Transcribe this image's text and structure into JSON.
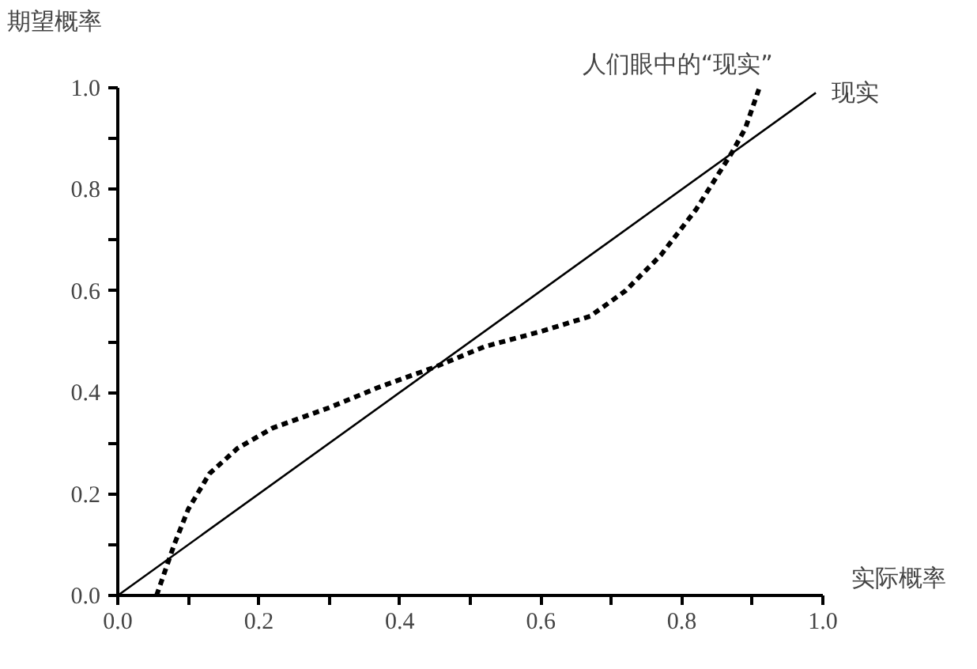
{
  "chart_data": {
    "type": "line",
    "xlabel": "实际概率",
    "ylabel": "期望概率",
    "xlim": [
      0,
      1
    ],
    "ylim": [
      0,
      1
    ],
    "xticks": [
      {
        "value": 0,
        "label": "0.0"
      },
      {
        "value": 0.1,
        "label": null
      },
      0.2,
      {
        "value": 0.3,
        "label": null
      },
      0.4,
      {
        "value": 0.5,
        "label": null
      },
      0.6,
      {
        "value": 0.7,
        "label": null
      },
      0.8,
      {
        "value": 0.9,
        "label": null
      },
      {
        "value": 1,
        "label": "1.0"
      }
    ],
    "yticks": [
      {
        "value": 0,
        "label": "0.0"
      },
      {
        "value": 0.1,
        "label": null
      },
      0.2,
      {
        "value": 0.3,
        "label": null
      },
      0.4,
      {
        "value": 0.5,
        "label": null
      },
      0.6,
      {
        "value": 0.7,
        "label": null
      },
      0.8,
      {
        "value": 0.9,
        "label": null
      },
      {
        "value": 1,
        "label": "1.0"
      }
    ],
    "grid": false,
    "legend": false,
    "series": [
      {
        "name": "现实",
        "color": "#000000",
        "line_style": "solid",
        "x": [
          0,
          0.99
        ],
        "values": [
          0,
          0.99
        ]
      },
      {
        "name": "人们眼中的“现实”",
        "color": "#000000",
        "line_style": "dashed",
        "x": [
          0.055,
          0.08,
          0.1,
          0.13,
          0.17,
          0.22,
          0.3,
          0.37,
          0.45,
          0.52,
          0.6,
          0.67,
          0.72,
          0.77,
          0.82,
          0.87,
          0.89,
          0.91
        ],
        "values": [
          0,
          0.1,
          0.17,
          0.24,
          0.29,
          0.33,
          0.37,
          0.41,
          0.45,
          0.49,
          0.52,
          0.55,
          0.6,
          0.67,
          0.76,
          0.87,
          0.92,
          1.0
        ]
      }
    ]
  }
}
